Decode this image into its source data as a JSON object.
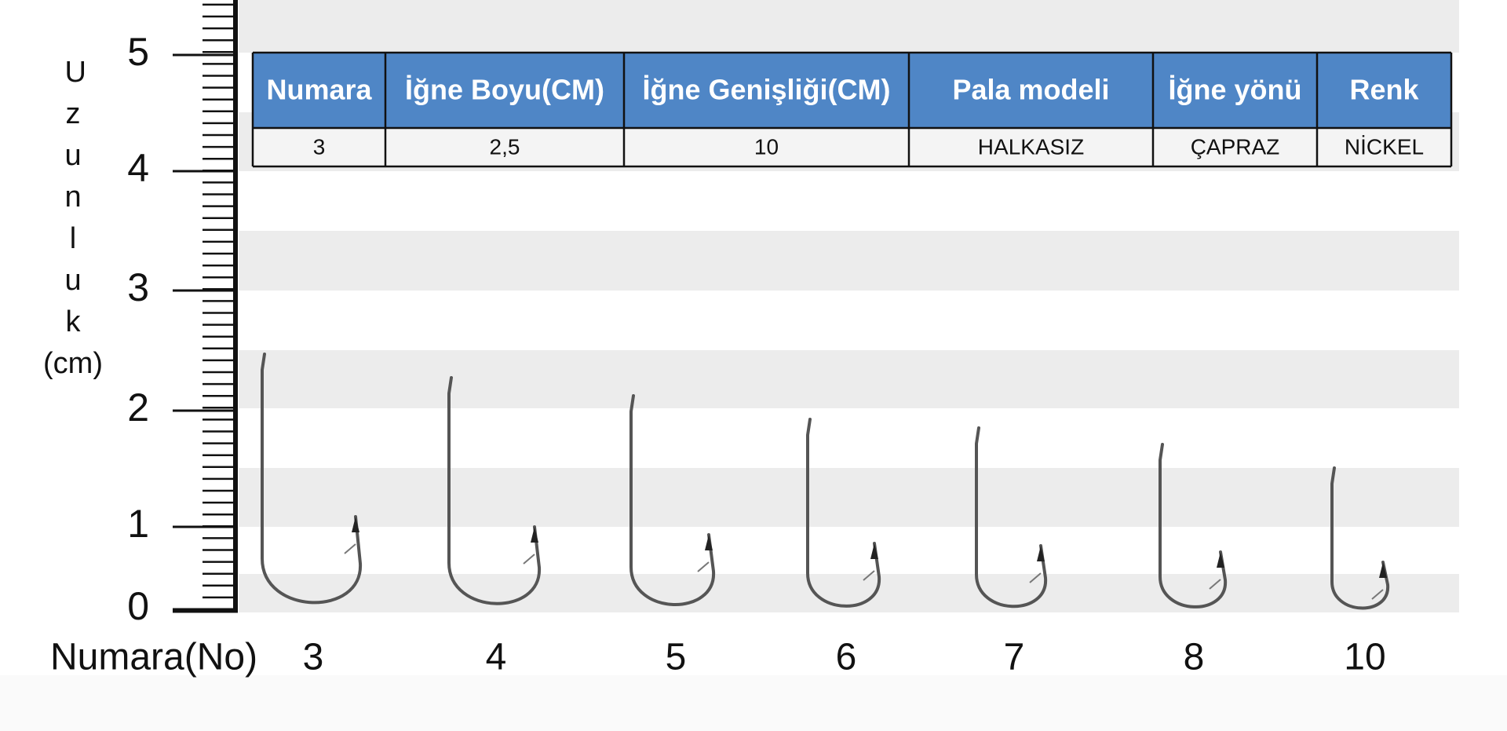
{
  "ruler": {
    "labels": [
      "5",
      "4",
      "3",
      "2",
      "1",
      "0"
    ]
  },
  "axis_label": {
    "word": "Uzunluk",
    "unit": "(cm)"
  },
  "table": {
    "header": [
      "Numara",
      "İğne Boyu(CM)",
      "İğne Genişliği(CM)",
      "Pala modeli",
      "İğne yönü",
      "Renk"
    ],
    "rows": [
      [
        "3",
        "2,5",
        "10",
        "HALKASIZ",
        "ÇAPRAZ",
        "NİCKEL"
      ]
    ]
  },
  "sizes": {
    "label": "Numara(No)",
    "numbers": [
      "3",
      "4",
      "5",
      "6",
      "7",
      "8",
      "10"
    ]
  }
}
